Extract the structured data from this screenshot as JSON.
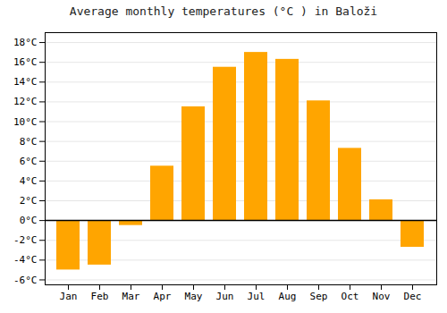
{
  "chart_data": {
    "type": "bar",
    "title": "Average monthly temperatures (°C ) in Baloži",
    "categories": [
      "Jan",
      "Feb",
      "Mar",
      "Apr",
      "May",
      "Jun",
      "Jul",
      "Aug",
      "Sep",
      "Oct",
      "Nov",
      "Dec"
    ],
    "values": [
      -5.0,
      -4.5,
      -0.5,
      5.5,
      11.5,
      15.5,
      17.0,
      16.3,
      12.1,
      7.3,
      2.1,
      -2.7
    ],
    "color": "#FFA500",
    "ylim": [
      -6.5,
      19.0
    ],
    "yticks": [
      {
        "value": -6,
        "label": "-6°C"
      },
      {
        "value": -4,
        "label": "-4°C"
      },
      {
        "value": -2,
        "label": "-2°C"
      },
      {
        "value": 0,
        "label": "0°C"
      },
      {
        "value": 2,
        "label": "2°C"
      },
      {
        "value": 4,
        "label": "4°C"
      },
      {
        "value": 6,
        "label": "6°C"
      },
      {
        "value": 8,
        "label": "8°C"
      },
      {
        "value": 10,
        "label": "10°C"
      },
      {
        "value": 12,
        "label": "12°C"
      },
      {
        "value": 14,
        "label": "14°C"
      },
      {
        "value": 16,
        "label": "16°C"
      },
      {
        "value": 18,
        "label": "18°C"
      }
    ],
    "grid": true
  }
}
